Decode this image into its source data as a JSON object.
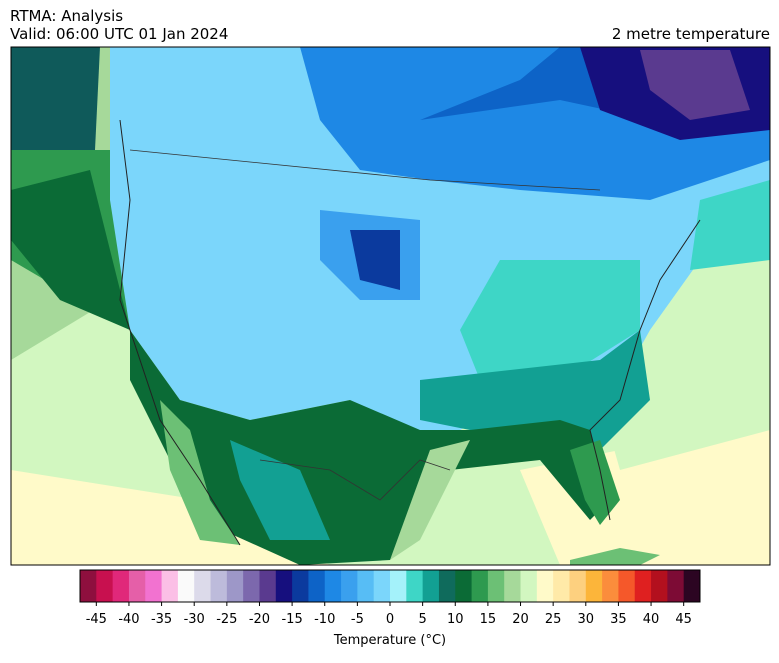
{
  "header": {
    "title": "RTMA: Analysis",
    "valid": "Valid: 06:00 UTC 01 Jan 2024",
    "field": "2 metre temperature"
  },
  "colorbar": {
    "label": "Temperature (°C)",
    "range": [
      -47.5,
      47.5
    ],
    "ticks": [
      -45,
      -40,
      -35,
      -30,
      -25,
      -20,
      -15,
      -10,
      -5,
      0,
      5,
      10,
      15,
      20,
      25,
      30,
      35,
      40,
      45
    ],
    "colors": [
      "#8e0f3e",
      "#c8104f",
      "#e0287a",
      "#e55fa8",
      "#f272d0",
      "#fbbfe6",
      "#fafafa",
      "#dcdaea",
      "#bdbbdb",
      "#9d97c8",
      "#7c68ad",
      "#5a3a8f",
      "#160f7e",
      "#0b3a9e",
      "#0d63c7",
      "#1e88e5",
      "#3aa0ee",
      "#57bdf5",
      "#7bd6fb",
      "#a4f2fa",
      "#3ed6c6",
      "#12a093",
      "#0f6b5c",
      "#0b6b36",
      "#2e9a4f",
      "#6cc075",
      "#a6d99a",
      "#d2f7c0",
      "#fffac9",
      "#ffeaa8",
      "#fdd07f",
      "#fcb53a",
      "#fb8d3c",
      "#f5582a",
      "#df2020",
      "#b3101e",
      "#7d0b35",
      "#2c0522"
    ]
  }
}
